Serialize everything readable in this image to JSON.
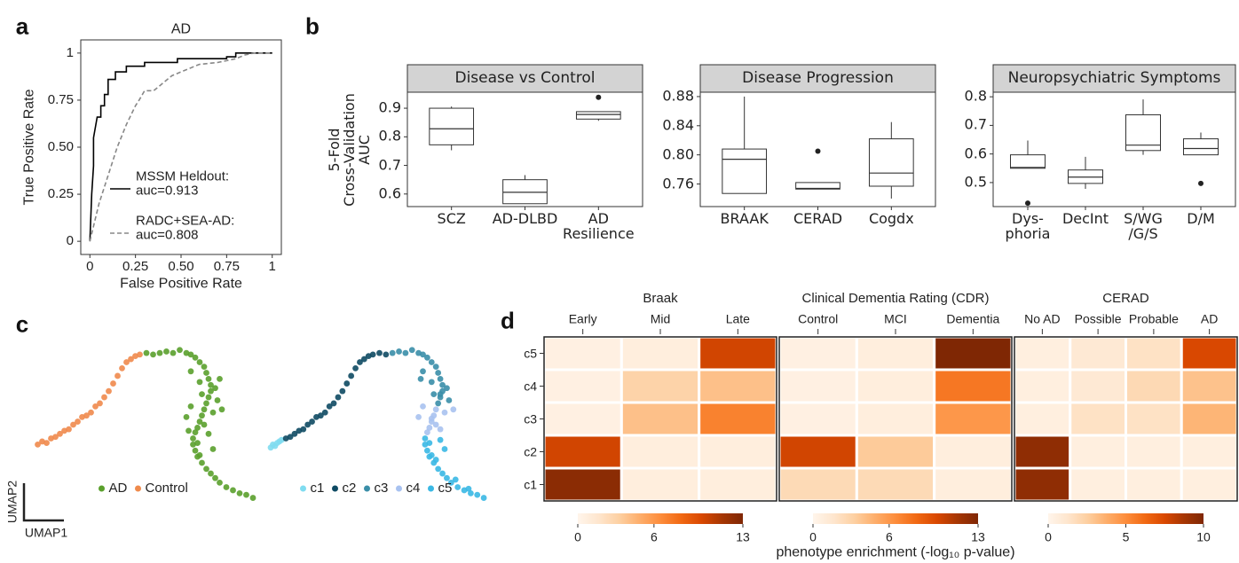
{
  "chart_data": [
    {
      "type": "line",
      "panel_label": "a",
      "title": "AD",
      "xlabel": "False Positive Rate",
      "ylabel": "True Positive Rate",
      "xlim": [
        -0.05,
        1.05
      ],
      "ylim": [
        -0.07,
        1.07
      ],
      "xticks": [
        0,
        0.25,
        {
          "value": 0.5,
          "label": "0.50"
        },
        0.75,
        1
      ],
      "yticks": [
        0,
        0.25,
        {
          "value": 0.5,
          "label": "0.50"
        },
        0.75,
        1
      ],
      "legend": "lower right",
      "series": [
        {
          "name": "MSSM Heldout:\nauc=0.913",
          "color": "#000000",
          "linestyle": "solid",
          "x": [
            0,
            0.01,
            0.02,
            0.02,
            0.04,
            0.06,
            0.06,
            0.08,
            0.08,
            0.1,
            0.1,
            0.14,
            0.14,
            0.2,
            0.2,
            0.3,
            0.3,
            0.48,
            0.48,
            0.75,
            0.75,
            0.8,
            0.8,
            1
          ],
          "values": [
            0,
            0.25,
            0.4,
            0.55,
            0.66,
            0.66,
            0.72,
            0.72,
            0.78,
            0.78,
            0.86,
            0.86,
            0.9,
            0.9,
            0.93,
            0.93,
            0.95,
            0.95,
            0.97,
            0.97,
            0.98,
            0.98,
            1,
            1
          ]
        },
        {
          "name": "RADC+SEA-AD:\nauc=0.808",
          "color": "#888888",
          "linestyle": "dashed",
          "x": [
            0,
            0.05,
            0.1,
            0.15,
            0.2,
            0.25,
            0.27,
            0.3,
            0.35,
            0.4,
            0.45,
            0.5,
            0.55,
            0.6,
            0.7,
            0.8,
            0.85,
            0.9,
            1
          ],
          "values": [
            0,
            0.2,
            0.35,
            0.5,
            0.62,
            0.72,
            0.75,
            0.8,
            0.8,
            0.84,
            0.88,
            0.9,
            0.92,
            0.94,
            0.95,
            0.97,
            0.99,
            1,
            1
          ]
        }
      ]
    },
    {
      "type": "box",
      "panel_label": "b",
      "title": "Disease vs Control",
      "ylabel": "5-Fold\nCross-Validation\nAUC",
      "categories": [
        "SCZ",
        "AD-DLBD",
        "AD\nResilience"
      ],
      "ylim": [
        0.556,
        0.956
      ],
      "yticks": [
        0.6,
        0.7,
        0.8,
        0.9
      ],
      "fill": "#ffffff",
      "stroke": "#333333",
      "strip_color": "#d3d3d3",
      "boxes": [
        {
          "min": 0.753,
          "q1": 0.772,
          "median": 0.828,
          "q3": 0.9,
          "max": 0.906
        },
        {
          "min": 0.566,
          "q1": 0.566,
          "median": 0.606,
          "q3": 0.65,
          "max": 0.666
        },
        {
          "min": 0.856,
          "q1": 0.862,
          "median": 0.878,
          "q3": 0.888,
          "max": 0.888,
          "outliers": [
            0.938
          ]
        }
      ]
    },
    {
      "type": "box",
      "title": "Disease Progression",
      "categories": [
        "BRAAK",
        "CERAD",
        "Cogdx"
      ],
      "ylim": [
        0.729,
        0.886
      ],
      "yticks": [
        0.76,
        {
          "value": 0.8,
          "label": "0.80"
        },
        0.84,
        0.88
      ],
      "fill": "#ffffff",
      "stroke": "#333333",
      "strip_color": "#d3d3d3",
      "boxes": [
        {
          "min": 0.747,
          "q1": 0.747,
          "median": 0.794,
          "q3": 0.808,
          "max": 0.88
        },
        {
          "min": 0.753,
          "q1": 0.753,
          "median": 0.754,
          "q3": 0.762,
          "max": 0.762,
          "outliers": [
            0.805
          ]
        },
        {
          "min": 0.74,
          "q1": 0.757,
          "median": 0.775,
          "q3": 0.822,
          "max": 0.845
        }
      ]
    },
    {
      "type": "box",
      "title": "Neuropsychiatric Symptoms",
      "categories": [
        "Dys-\nphoria",
        "DecInt",
        "S/WG\n/G/S",
        "D/M"
      ],
      "ylim": [
        0.416,
        0.816
      ],
      "yticks": [
        0.5,
        0.6,
        0.7,
        0.8
      ],
      "fill": "#ffffff",
      "stroke": "#333333",
      "strip_color": "#d3d3d3",
      "boxes": [
        {
          "min": 0.55,
          "q1": 0.55,
          "median": 0.553,
          "q3": 0.597,
          "max": 0.647,
          "outliers": [
            0.428
          ]
        },
        {
          "min": 0.478,
          "q1": 0.497,
          "median": 0.519,
          "q3": 0.544,
          "max": 0.59
        },
        {
          "min": 0.597,
          "q1": 0.612,
          "median": 0.631,
          "q3": 0.737,
          "max": 0.791
        },
        {
          "min": 0.597,
          "q1": 0.597,
          "median": 0.619,
          "q3": 0.653,
          "max": 0.675,
          "outliers": [
            0.497
          ]
        }
      ]
    },
    {
      "type": "scatter",
      "panel_label": "c",
      "xlabel": "UMAP1",
      "ylabel": "UMAP2",
      "xlim": [
        0,
        100
      ],
      "ylim": [
        0,
        100
      ],
      "legend": "bottom",
      "series": [
        {
          "name": "AD",
          "color": "#5aa02c",
          "x": [
            50,
            53,
            56,
            59,
            62,
            65,
            68,
            70,
            72,
            74,
            76,
            77,
            78,
            79,
            79,
            78,
            77,
            76,
            75,
            74,
            73,
            72,
            71,
            71,
            72,
            73,
            75,
            77,
            79,
            81,
            83,
            86,
            89,
            92,
            95,
            98,
            70,
            74,
            81,
            82,
            80,
            76,
            73,
            69,
            68,
            75,
            83,
            84,
            70,
            78,
            80,
            74
          ],
          "values": [
            97,
            96,
            97,
            98,
            97,
            99,
            97,
            96,
            94,
            91,
            88,
            84,
            80,
            76,
            72,
            68,
            64,
            60,
            56,
            52,
            48,
            45,
            41,
            37,
            33,
            29,
            25,
            21,
            18,
            15,
            12,
            9,
            7,
            5,
            4,
            2,
            85,
            78,
            74,
            66,
            58,
            50,
            38,
            46,
            55,
            70,
            80,
            60,
            62,
            44,
            34,
            30
          ]
        },
        {
          "name": "Control",
          "color": "#ef8a4c",
          "x": [
            1,
            3,
            5,
            7,
            9,
            11,
            13,
            15,
            17,
            19,
            21,
            23,
            25,
            27,
            29,
            31,
            33,
            35,
            37,
            39,
            41,
            43,
            45,
            47
          ],
          "values": [
            37,
            39,
            38,
            41,
            42,
            44,
            46,
            47,
            50,
            52,
            55,
            56,
            58,
            62,
            64,
            68,
            72,
            77,
            82,
            87,
            91,
            93,
            95,
            96
          ]
        }
      ]
    },
    {
      "type": "scatter",
      "xlim": [
        0,
        100
      ],
      "ylim": [
        0,
        100
      ],
      "legend": "bottom",
      "series": [
        {
          "name": "c1",
          "color": "#7fdcf0",
          "x": [
            0,
            1,
            2,
            3,
            4,
            5
          ],
          "values": [
            35,
            37,
            36,
            38,
            39,
            40
          ]
        },
        {
          "name": "c2",
          "color": "#0e4a63",
          "x": [
            7,
            9,
            11,
            13,
            15,
            17,
            19,
            21,
            23,
            25,
            27,
            29,
            31,
            33,
            35,
            37,
            39,
            41,
            43,
            45,
            47,
            50,
            53
          ],
          "values": [
            41,
            42,
            44,
            46,
            47,
            50,
            52,
            55,
            56,
            58,
            62,
            64,
            68,
            72,
            77,
            82,
            87,
            91,
            93,
            95,
            96,
            97,
            96
          ]
        },
        {
          "name": "c3",
          "color": "#3a8ea8",
          "x": [
            56,
            59,
            62,
            65,
            68,
            70,
            72,
            74,
            76,
            77,
            78,
            79,
            79,
            78,
            77,
            70,
            74,
            81,
            82,
            78,
            75,
            69
          ],
          "values": [
            97,
            98,
            97,
            99,
            97,
            96,
            94,
            91,
            88,
            84,
            80,
            76,
            72,
            68,
            64,
            85,
            78,
            74,
            66,
            70,
            70,
            80
          ]
        },
        {
          "name": "c4",
          "color": "#a8c2f0",
          "x": [
            76,
            75,
            74,
            73,
            80,
            76,
            68,
            84,
            70,
            72,
            78,
            74
          ],
          "values": [
            60,
            56,
            52,
            48,
            58,
            50,
            55,
            60,
            62,
            45,
            47,
            54
          ]
        },
        {
          "name": "c5",
          "color": "#3ab8e4",
          "x": [
            71,
            71,
            72,
            73,
            75,
            77,
            79,
            81,
            83,
            86,
            89,
            92,
            95,
            98,
            73,
            78,
            80,
            74,
            76,
            85,
            91
          ],
          "values": [
            41,
            37,
            33,
            29,
            25,
            21,
            18,
            15,
            12,
            9,
            7,
            5,
            4,
            2,
            38,
            40,
            34,
            30,
            27,
            14,
            8
          ]
        }
      ]
    },
    {
      "type": "heatmap",
      "panel_label": "d",
      "title": "Braak",
      "columns": [
        "Early",
        "Mid",
        "Late"
      ],
      "rows": [
        "c5",
        "c4",
        "c3",
        "c2",
        "c1"
      ],
      "values": [
        [
          0.5,
          0.8,
          10
        ],
        [
          0.5,
          3,
          4
        ],
        [
          0.5,
          4,
          7
        ],
        [
          10,
          0.8,
          0.8
        ],
        [
          12.5,
          0.8,
          0.8
        ]
      ],
      "zlim": [
        0,
        13
      ],
      "zticks": [
        0,
        6,
        13
      ],
      "colormap": [
        "#fff5eb",
        "#fee6ce",
        "#fdd0a2",
        "#fdae6b",
        "#fd8d3c",
        "#f16913",
        "#d94801",
        "#a63603",
        "#7f2704"
      ]
    },
    {
      "type": "heatmap",
      "title": "Clinical Dementia Rating (CDR)",
      "columns": [
        "Control",
        "MCI",
        "Dementia"
      ],
      "values": [
        [
          0.5,
          0.8,
          13
        ],
        [
          0.5,
          0.8,
          7.5
        ],
        [
          0.5,
          0.8,
          6
        ],
        [
          10,
          3.5,
          0.8
        ],
        [
          2.5,
          2.5,
          0.8
        ]
      ],
      "zlim": [
        0,
        13
      ],
      "zticks": [
        0,
        6,
        13
      ],
      "colormap": [
        "#fff5eb",
        "#fee6ce",
        "#fdd0a2",
        "#fdae6b",
        "#fd8d3c",
        "#f16913",
        "#d94801",
        "#a63603",
        "#7f2704"
      ],
      "colorbar_label": "phenotype enrichment (-log₁₀ p-value)"
    },
    {
      "type": "heatmap",
      "title": "CERAD",
      "columns": [
        "No AD",
        "Possible",
        "Probable",
        "AD"
      ],
      "values": [
        [
          0.5,
          1,
          1.5,
          7.5
        ],
        [
          0.5,
          1,
          2,
          3
        ],
        [
          0.5,
          1.5,
          1.5,
          3.5
        ],
        [
          9.5,
          0.5,
          0.5,
          0.5
        ],
        [
          9.5,
          0.5,
          0.5,
          0.5
        ]
      ],
      "zlim": [
        0,
        10
      ],
      "zticks": [
        0,
        5,
        10
      ],
      "colormap": [
        "#fff5eb",
        "#fee6ce",
        "#fdd0a2",
        "#fdae6b",
        "#fd8d3c",
        "#f16913",
        "#d94801",
        "#a63603",
        "#7f2704"
      ]
    }
  ]
}
